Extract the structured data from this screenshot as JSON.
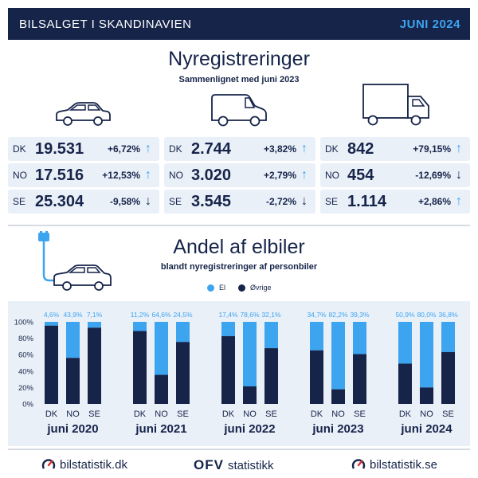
{
  "header": {
    "title": "BILSALGET I SKANDINAVIEN",
    "date": "JUNI 2024"
  },
  "section1": {
    "title": "Nyregistreringer",
    "subtitle": "Sammenlignet med juni 2023",
    "groups": [
      {
        "vehicle": "car-icon",
        "rows": [
          {
            "country": "DK",
            "value": "19.531",
            "change": "+6,72%",
            "dir": "up"
          },
          {
            "country": "NO",
            "value": "17.516",
            "change": "+12,53%",
            "dir": "up"
          },
          {
            "country": "SE",
            "value": "25.304",
            "change": "-9,58%",
            "dir": "down"
          }
        ]
      },
      {
        "vehicle": "van-icon",
        "rows": [
          {
            "country": "DK",
            "value": "2.744",
            "change": "+3,82%",
            "dir": "up"
          },
          {
            "country": "NO",
            "value": "3.020",
            "change": "+2,79%",
            "dir": "up"
          },
          {
            "country": "SE",
            "value": "3.545",
            "change": "-2,72%",
            "dir": "down"
          }
        ]
      },
      {
        "vehicle": "truck-icon",
        "rows": [
          {
            "country": "DK",
            "value": "842",
            "change": "+79,15%",
            "dir": "up"
          },
          {
            "country": "NO",
            "value": "454",
            "change": "-12,69%",
            "dir": "down"
          },
          {
            "country": "SE",
            "value": "1.114",
            "change": "+2,86%",
            "dir": "up"
          }
        ]
      }
    ]
  },
  "section2": {
    "title": "Andel af elbiler",
    "subtitle": "blandt nyregistreringer af personbiler",
    "legend": {
      "el": "El",
      "other": "Øvrige"
    }
  },
  "colors": {
    "el": "#3da4f0",
    "other": "#16244a",
    "navy": "#16244a",
    "bg": "#eaf0f8"
  },
  "chart_data": {
    "type": "bar",
    "stacked": true,
    "ylim": [
      0,
      100
    ],
    "yticks": [
      "0%",
      "20%",
      "40%",
      "60%",
      "80%",
      "100%"
    ],
    "groups": [
      {
        "label": "juni 2020",
        "bars": [
          {
            "country": "DK",
            "el": 4.6,
            "label": "4,6%"
          },
          {
            "country": "NO",
            "el": 43.9,
            "label": "43,9%"
          },
          {
            "country": "SE",
            "el": 7.1,
            "label": "7,1%"
          }
        ]
      },
      {
        "label": "juni 2021",
        "bars": [
          {
            "country": "DK",
            "el": 11.2,
            "label": "11,2%"
          },
          {
            "country": "NO",
            "el": 64.6,
            "label": "64,6%"
          },
          {
            "country": "SE",
            "el": 24.5,
            "label": "24,5%"
          }
        ]
      },
      {
        "label": "juni 2022",
        "bars": [
          {
            "country": "DK",
            "el": 17.4,
            "label": "17,4%"
          },
          {
            "country": "NO",
            "el": 78.6,
            "label": "78,6%"
          },
          {
            "country": "SE",
            "el": 32.1,
            "label": "32,1%"
          }
        ]
      },
      {
        "label": "juni 2023",
        "bars": [
          {
            "country": "DK",
            "el": 34.7,
            "label": "34,7%"
          },
          {
            "country": "NO",
            "el": 82.2,
            "label": "82,2%"
          },
          {
            "country": "SE",
            "el": 39.3,
            "label": "39,3%"
          }
        ]
      },
      {
        "label": "juni 2024",
        "bars": [
          {
            "country": "DK",
            "el": 50.9,
            "label": "50,9%"
          },
          {
            "country": "NO",
            "el": 80.0,
            "label": "80,0%"
          },
          {
            "country": "SE",
            "el": 36.8,
            "label": "36,8%"
          }
        ]
      }
    ]
  },
  "footer": {
    "left": "bilstatistik.dk",
    "center_brand": "OFV",
    "center_text": "statistikk",
    "right": "bilstatistik.se"
  }
}
